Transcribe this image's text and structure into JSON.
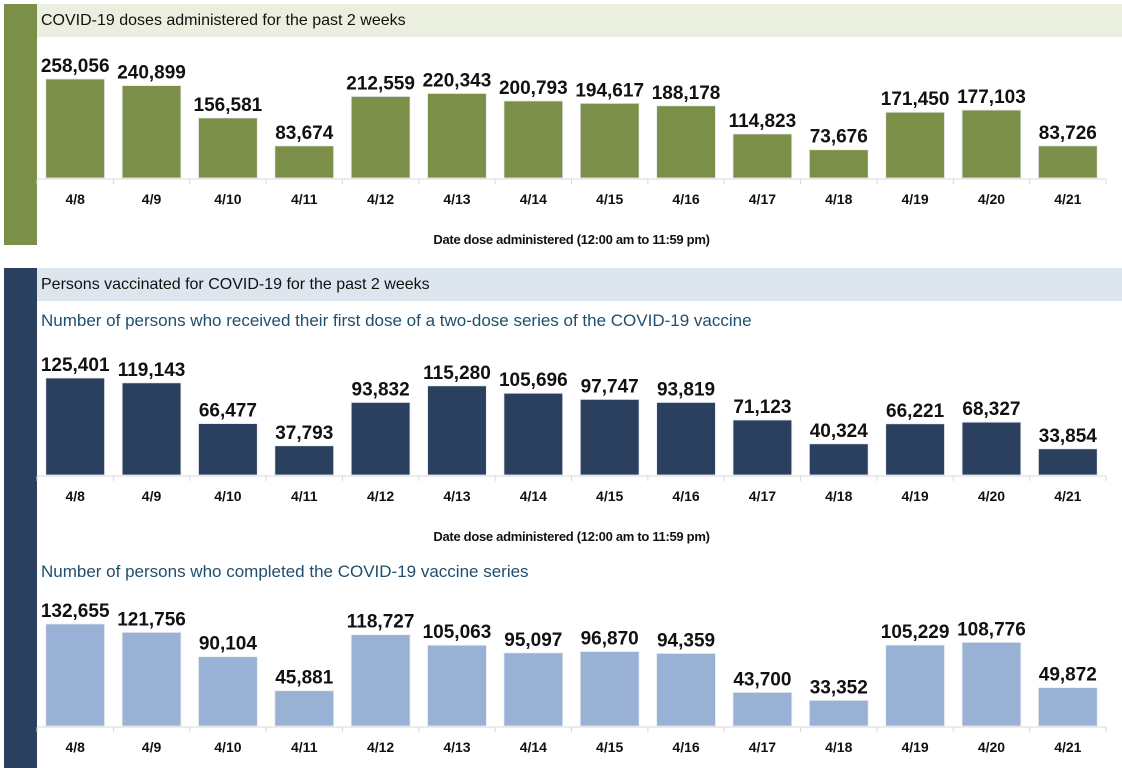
{
  "colors": {
    "green": "#7b8f48",
    "navy": "#2b3f5e",
    "lightblue": "#98b1d4",
    "green_band": "#ebefe0",
    "blue_band": "#dde5ef",
    "subtitle": "#1f4e6e"
  },
  "section1": {
    "header": "COVID-19 doses administered for the past 2 weeks"
  },
  "section2": {
    "header": "Persons vaccinated for COVID-19 for the past 2 weeks",
    "subtitle_first": "Number of persons who received their first dose of a two-dose series of the COVID-19 vaccine",
    "subtitle_completed": "Number of persons who completed the COVID-19 vaccine series"
  },
  "chart_data": [
    {
      "type": "bar",
      "title": "COVID-19 doses administered for the past 2 weeks",
      "xlabel": "Date dose administered (12:00 am to 11:59 pm)",
      "ylabel": "",
      "categories": [
        "4/8",
        "4/9",
        "4/10",
        "4/11",
        "4/12",
        "4/13",
        "4/14",
        "4/15",
        "4/16",
        "4/17",
        "4/18",
        "4/19",
        "4/20",
        "4/21"
      ],
      "values": [
        258056,
        240899,
        156581,
        83674,
        212559,
        220343,
        200793,
        194617,
        188178,
        114823,
        73676,
        171450,
        177103,
        83726
      ],
      "labels": [
        "258,056",
        "240,899",
        "156,581",
        "83,674",
        "212,559",
        "220,343",
        "200,793",
        "194,617",
        "188,178",
        "114,823",
        "73,676",
        "171,450",
        "177,103",
        "83,726"
      ],
      "color": "#7b8f48",
      "grid": false,
      "ylim": [
        0,
        258056
      ]
    },
    {
      "type": "bar",
      "title": "Number of persons who received their first dose of a two-dose series of the COVID-19 vaccine",
      "xlabel": "Date dose administered (12:00 am to 11:59 pm)",
      "ylabel": "",
      "categories": [
        "4/8",
        "4/9",
        "4/10",
        "4/11",
        "4/12",
        "4/13",
        "4/14",
        "4/15",
        "4/16",
        "4/17",
        "4/18",
        "4/19",
        "4/20",
        "4/21"
      ],
      "values": [
        125401,
        119143,
        66477,
        37793,
        93832,
        115280,
        105696,
        97747,
        93819,
        71123,
        40324,
        66221,
        68327,
        33854
      ],
      "labels": [
        "125,401",
        "119,143",
        "66,477",
        "37,793",
        "93,832",
        "115,280",
        "105,696",
        "97,747",
        "93,819",
        "71,123",
        "40,324",
        "66,221",
        "68,327",
        "33,854"
      ],
      "color": "#2b3f5e",
      "grid": false,
      "ylim": [
        0,
        125401
      ]
    },
    {
      "type": "bar",
      "title": "Number of persons who completed the COVID-19 vaccine series",
      "xlabel": "",
      "ylabel": "",
      "categories": [
        "4/8",
        "4/9",
        "4/10",
        "4/11",
        "4/12",
        "4/13",
        "4/14",
        "4/15",
        "4/16",
        "4/17",
        "4/18",
        "4/19",
        "4/20",
        "4/21"
      ],
      "values": [
        132655,
        121756,
        90104,
        45881,
        118727,
        105063,
        95097,
        96870,
        94359,
        43700,
        33352,
        105229,
        108776,
        49872
      ],
      "labels": [
        "132,655",
        "121,756",
        "90,104",
        "45,881",
        "118,727",
        "105,063",
        "95,097",
        "96,870",
        "94,359",
        "43,700",
        "33,352",
        "105,229",
        "108,776",
        "49,872"
      ],
      "color": "#98b1d4",
      "grid": false,
      "ylim": [
        0,
        132655
      ]
    }
  ]
}
